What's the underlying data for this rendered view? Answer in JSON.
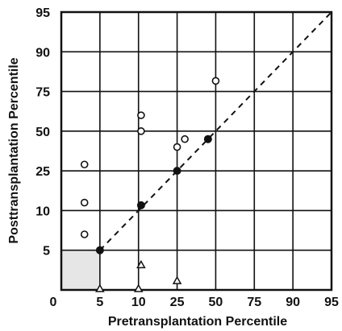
{
  "chart_data": {
    "type": "scatter",
    "xlabel": "Pretransplantation Percentile",
    "ylabel": "Posttransplantation Percentile",
    "ticks": [
      "0",
      "5",
      "10",
      "25",
      "50",
      "75",
      "90",
      "95"
    ],
    "xlim": [
      "0",
      "95"
    ],
    "ylim": [
      "0",
      "95"
    ],
    "grid": true,
    "reference_line": {
      "style": "dashed",
      "from": [
        "5",
        "5"
      ],
      "to": [
        "95",
        "95"
      ]
    },
    "series": [
      {
        "marker": "open-circle",
        "points": [
          {
            "x": 3,
            "y": 29
          },
          {
            "x": 3,
            "y": 13
          },
          {
            "x": 3,
            "y": 7
          },
          {
            "x": 11,
            "y": 60
          },
          {
            "x": 11,
            "y": 50
          },
          {
            "x": 25,
            "y": 40
          },
          {
            "x": 30,
            "y": 45
          },
          {
            "x": 50,
            "y": 79
          }
        ]
      },
      {
        "marker": "filled-circle",
        "points": [
          {
            "x": 5,
            "y": 5
          },
          {
            "x": 11,
            "y": 12
          },
          {
            "x": 25,
            "y": 25
          },
          {
            "x": 45,
            "y": 45
          }
        ]
      },
      {
        "marker": "open-triangle",
        "points": [
          {
            "x": 5,
            "y": 0
          },
          {
            "x": 10,
            "y": 0
          },
          {
            "x": 11,
            "y": 3
          },
          {
            "x": 25,
            "y": 1
          }
        ]
      }
    ],
    "shaded_region": {
      "x": [
        "0",
        "5"
      ],
      "y": [
        "0",
        "5"
      ],
      "color": "#e6e6e6"
    }
  }
}
